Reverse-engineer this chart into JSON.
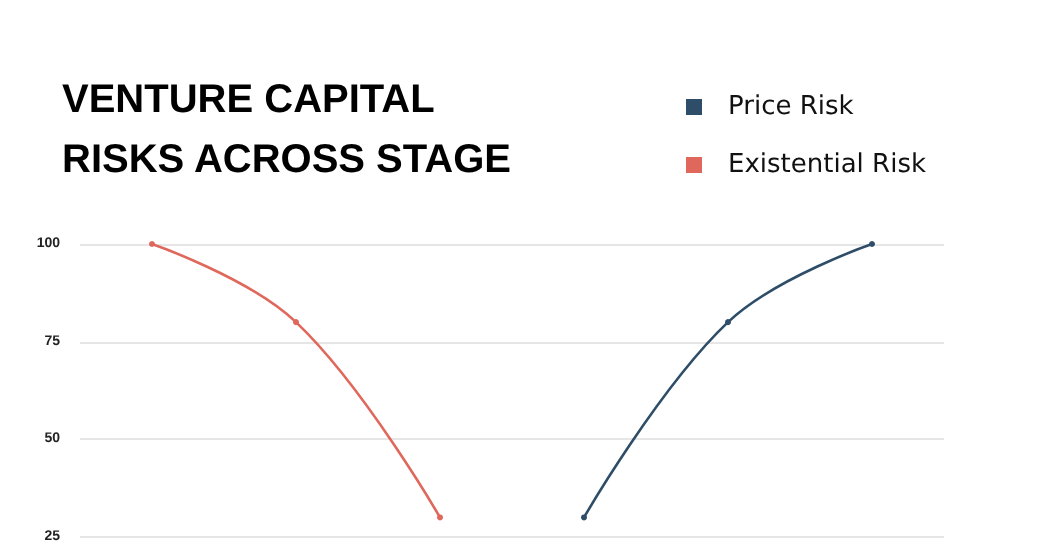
{
  "chart_data": {
    "type": "line",
    "title": "VENTURE CAPITAL RISKS ACROSS STAGE",
    "categories": [
      null,
      null,
      null,
      null,
      null,
      null
    ],
    "series": [
      {
        "name": "Price Risk",
        "color": "#2e4d68",
        "values": [
          null,
          null,
          null,
          30,
          80,
          100
        ]
      },
      {
        "name": "Existential Risk",
        "color": "#e0675b",
        "values": [
          100,
          80,
          30,
          null,
          null,
          null
        ]
      }
    ],
    "ylim": [
      25,
      100
    ],
    "yticks": [
      25,
      50,
      75,
      100
    ],
    "grid": "y",
    "legend": "top right",
    "marker": "circle",
    "line_style": "solid",
    "tick_labels": "y"
  }
}
